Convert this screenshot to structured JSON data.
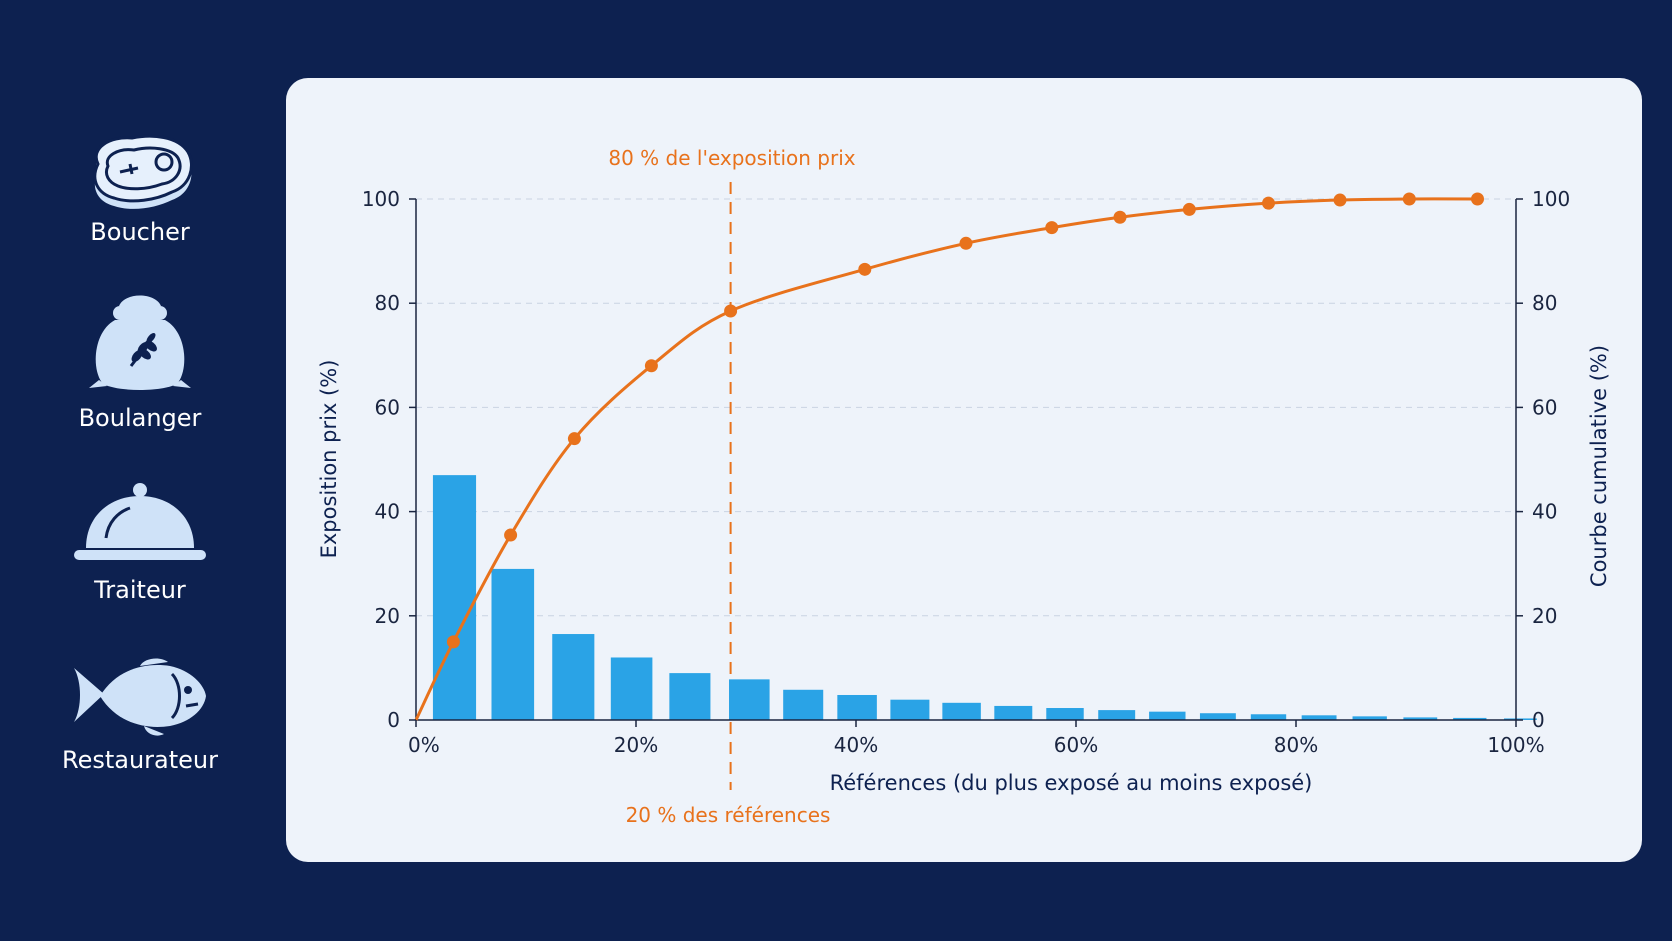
{
  "sidebar": {
    "items": [
      {
        "label": "Boucher",
        "icon": "steak-icon"
      },
      {
        "label": "Boulanger",
        "icon": "flour-sack-icon"
      },
      {
        "label": "Traiteur",
        "icon": "cloche-icon"
      },
      {
        "label": "Restaurateur",
        "icon": "fish-icon"
      }
    ]
  },
  "colors": {
    "background": "#0d2150",
    "card": "#eef3fa",
    "bar": "#2aa3e6",
    "line": "#e8721c",
    "icon": "#cfe2f8"
  },
  "chart_data": {
    "type": "bar",
    "title": "",
    "xlabel": "Références (du plus exposé au moins exposé)",
    "ylabel": "Exposition prix (%)",
    "y2label": "Courbe cumulative (%)",
    "xlim": [
      0,
      100
    ],
    "ylim": [
      0,
      100
    ],
    "y2lim": [
      0,
      100
    ],
    "x_ticks": [
      "0%",
      "20%",
      "40%",
      "60%",
      "80%",
      "100%"
    ],
    "y_ticks": [
      "0",
      "20",
      "40",
      "60",
      "80",
      "100"
    ],
    "y2_ticks": [
      "0",
      "20",
      "40",
      "60",
      "80",
      "100"
    ],
    "grid": true,
    "series": [
      {
        "type": "bar",
        "x": [
          3.5,
          8.8,
          14.3,
          19.6,
          24.9,
          30.3,
          35.2,
          40.1,
          44.9,
          49.6,
          54.3,
          59.0,
          63.7,
          68.3,
          72.9,
          77.5,
          82.1,
          86.7,
          91.3,
          95.8,
          100.4
        ],
        "values": [
          47,
          29,
          16.5,
          12,
          9,
          7.8,
          5.8,
          4.8,
          3.9,
          3.3,
          2.7,
          2.3,
          1.9,
          1.6,
          1.3,
          1.1,
          0.9,
          0.7,
          0.5,
          0.4,
          0.3
        ]
      },
      {
        "type": "line",
        "x": [
          0,
          3.4,
          8.6,
          14.4,
          21.4,
          28.6,
          40.8,
          50.0,
          57.8,
          64.0,
          70.3,
          77.5,
          84.0,
          90.3,
          96.5
        ],
        "values": [
          0,
          15,
          35.5,
          54,
          68,
          78.5,
          86.5,
          91.5,
          94.5,
          96.5,
          98,
          99.2,
          99.8,
          100,
          100
        ]
      }
    ],
    "annotations": [
      {
        "text": "80 % de l'exposition prix",
        "position": "above-marker"
      },
      {
        "text": "20 % des références",
        "position": "below-marker"
      }
    ],
    "marker_x": 28.6
  }
}
